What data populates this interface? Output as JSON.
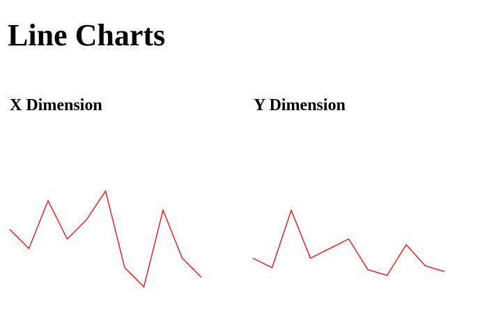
{
  "page": {
    "title": "Line Charts"
  },
  "chart_data": [
    {
      "type": "line",
      "title": "X Dimension",
      "xlabel": "",
      "ylabel": "",
      "grid": false,
      "axes_visible": false,
      "series": [
        {
          "color": "#ff0000",
          "values": [
            8,
            7,
            9.5,
            7.5,
            8.5,
            10,
            6,
            5,
            9,
            6.5,
            5.5
          ]
        }
      ]
    },
    {
      "type": "line",
      "title": "Y Dimension",
      "xlabel": "",
      "ylabel": "",
      "grid": false,
      "axes_visible": false,
      "series": [
        {
          "color": "#ff0000",
          "values": [
            6.5,
            6,
            9,
            6.5,
            7,
            7.5,
            5.9,
            5.6,
            7.2,
            6.1,
            5.8
          ]
        }
      ]
    }
  ]
}
